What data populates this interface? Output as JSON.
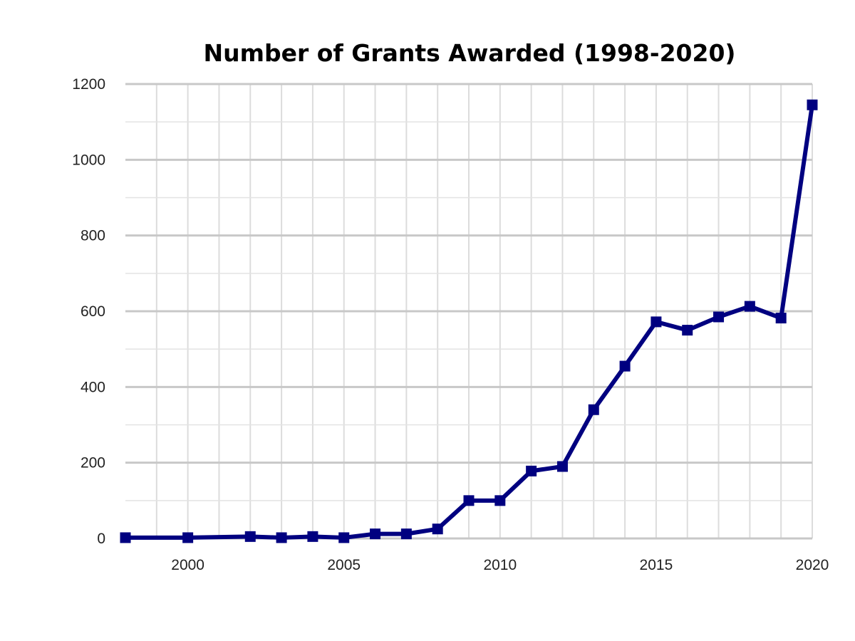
{
  "chart_data": {
    "type": "line",
    "title": "Number of Grants Awarded (1998-2020)",
    "xlabel": "",
    "ylabel": "",
    "xlim": [
      1998,
      2020
    ],
    "ylim": [
      0,
      1200
    ],
    "x_ticks": [
      2000,
      2005,
      2010,
      2015,
      2020
    ],
    "y_ticks": [
      0,
      200,
      400,
      600,
      800,
      1000,
      1200
    ],
    "grid": true,
    "legend": false,
    "series": [
      {
        "color": "#000080",
        "marker": "square",
        "points": [
          {
            "x": 1998,
            "y": 2
          },
          {
            "x": 2000,
            "y": 2
          },
          {
            "x": 2002,
            "y": 5
          },
          {
            "x": 2003,
            "y": 2
          },
          {
            "x": 2004,
            "y": 5
          },
          {
            "x": 2005,
            "y": 2
          },
          {
            "x": 2006,
            "y": 12
          },
          {
            "x": 2007,
            "y": 12
          },
          {
            "x": 2008,
            "y": 25
          },
          {
            "x": 2009,
            "y": 100
          },
          {
            "x": 2010,
            "y": 100
          },
          {
            "x": 2011,
            "y": 178
          },
          {
            "x": 2012,
            "y": 190
          },
          {
            "x": 2013,
            "y": 340
          },
          {
            "x": 2014,
            "y": 455
          },
          {
            "x": 2015,
            "y": 572
          },
          {
            "x": 2016,
            "y": 550
          },
          {
            "x": 2017,
            "y": 585
          },
          {
            "x": 2018,
            "y": 613
          },
          {
            "x": 2019,
            "y": 582
          },
          {
            "x": 2020,
            "y": 1145
          }
        ]
      }
    ]
  }
}
